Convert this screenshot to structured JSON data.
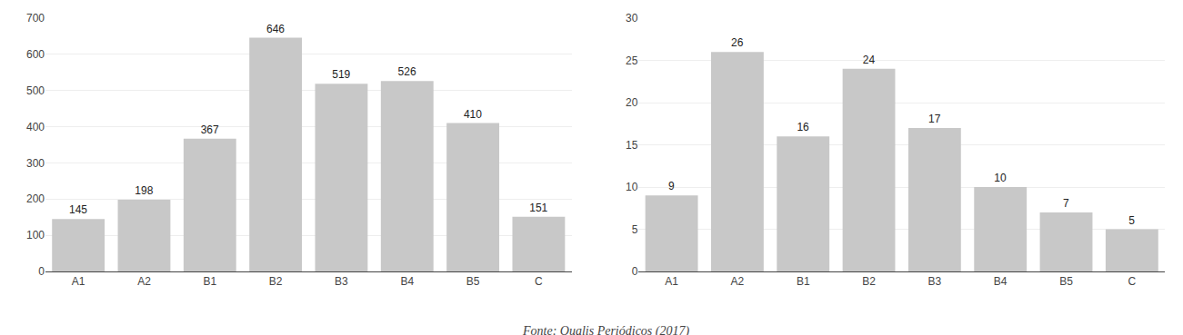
{
  "chart_data": [
    {
      "type": "bar",
      "categories": [
        "A1",
        "A2",
        "B1",
        "B2",
        "B3",
        "B4",
        "B5",
        "C"
      ],
      "values": [
        145,
        198,
        367,
        646,
        519,
        526,
        410,
        151
      ],
      "color": "#c8c8c8",
      "ylim": [
        0,
        700
      ],
      "yticks": [
        0,
        100,
        200,
        300,
        400,
        500,
        600,
        700
      ],
      "grid": true,
      "data_labels": true
    },
    {
      "type": "bar",
      "categories": [
        "A1",
        "A2",
        "B1",
        "B2",
        "B3",
        "B4",
        "B5",
        "C"
      ],
      "values": [
        9,
        26,
        16,
        24,
        17,
        10,
        7,
        5
      ],
      "color": "#c8c8c8",
      "ylim": [
        0,
        30
      ],
      "yticks": [
        0,
        5,
        10,
        15,
        20,
        25,
        30
      ],
      "grid": true,
      "data_labels": true
    }
  ],
  "caption": "Fonte: Qualis Periódicos (2017)"
}
